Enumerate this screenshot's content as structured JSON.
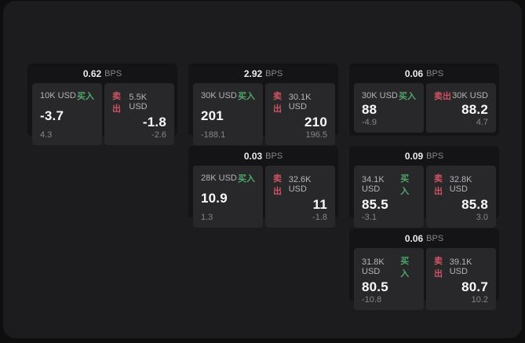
{
  "colors": {
    "buy": "#4fa869",
    "sell": "#cd5362",
    "panel_bg": "#1c1c1e",
    "card_bg": "#141416",
    "tile_bg": "#28282b"
  },
  "unit_label": "BPS",
  "side_labels": {
    "buy": "买入",
    "sell": "卖出"
  },
  "cards": [
    {
      "bps": "0.62",
      "buy": {
        "size": "10K USD",
        "price": "-3.7",
        "delta": "4.3"
      },
      "sell": {
        "size": "5.5K USD",
        "price": "-1.8",
        "delta": "-2.6"
      }
    },
    {
      "bps": "2.92",
      "buy": {
        "size": "30K USD",
        "price": "201",
        "delta": "-188.1"
      },
      "sell": {
        "size": "30.1K USD",
        "price": "210",
        "delta": "196.5"
      }
    },
    {
      "bps": "0.06",
      "buy": {
        "size": "30K USD",
        "price": "88",
        "delta": "-4.9"
      },
      "sell": {
        "size": "30K USD",
        "price": "88.2",
        "delta": "4.7"
      }
    },
    {
      "bps": "0.03",
      "buy": {
        "size": "28K USD",
        "price": "10.9",
        "delta": "1.3"
      },
      "sell": {
        "size": "32.6K USD",
        "price": "11",
        "delta": "-1.8"
      }
    },
    {
      "bps": "0.09",
      "buy": {
        "size": "34.1K USD",
        "price": "85.5",
        "delta": "-3.1"
      },
      "sell": {
        "size": "32.8K USD",
        "price": "85.8",
        "delta": "3.0"
      }
    },
    {
      "bps": "0.06",
      "buy": {
        "size": "31.8K USD",
        "price": "80.5",
        "delta": "-10.8"
      },
      "sell": {
        "size": "39.1K USD",
        "price": "80.7",
        "delta": "10.2"
      }
    }
  ]
}
